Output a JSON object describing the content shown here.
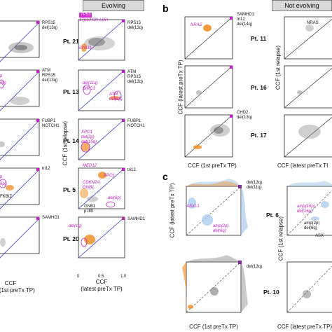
{
  "headers": {
    "evolving": "Evolving",
    "not_evolving": "Not evolving"
  },
  "panel_letters": {
    "b": "b",
    "c": "c"
  },
  "patients_a": [
    "Pt. 21",
    "Pt. 13",
    "Pt. 14",
    "Pt. 5",
    "Pt. 20"
  ],
  "patients_b": [
    "Pt. 11",
    "Pt. 16",
    "Pt. 17"
  ],
  "patients_c": [
    "Pt. 6",
    "Pt. 10"
  ],
  "left_labels": {
    "pt21": "RPS15\ndel(13q)",
    "pt13": "ATM\nRPS15\ndel(13q)",
    "pt14": "FUBP1\nNOTCH1",
    "pt5": "tri12",
    "pt20": "SAMHD1"
  },
  "left_magenta": {
    "pt13a": "p",
    "pt13b": "6p)",
    "pt5a": "p",
    "pt5b": "6p)",
    "pt5c": "FKBIZ"
  },
  "right_labels": {
    "pt21": "RPS15\ndel(13q)",
    "pt13": "ATM\nRPS15\ndel(13q)",
    "pt14": "FUBP1\nNOTCH1",
    "pt5": "tri12",
    "pt20": "SAMHD1"
  },
  "magenta_labels": {
    "tp53": "TP53",
    "cnloh": "17p13 CN-LOH",
    "synj1": "SYNJ1",
    "del11q": "del(11q)",
    "birc3": "BIRC3",
    "atm": "ATM\ndel(6p)",
    "xpo1": "XPO1\ndel(3p)\ndel(15q)",
    "med12": "MED12",
    "xpo1b": "XPO1",
    "cdkn2a": "CDKN2A\nGNB1",
    "del6p": "del(6p)",
    "del1q": "del(1q)"
  },
  "gnb1_label": "GNB1\np.I80",
  "b_labels": {
    "pt11_right": "SAMHD1\ntri12\ndel(14q)",
    "nras": "NRAS",
    "nras_right": "NRAS",
    "pt17_right": "CHD2\ndel(13q)"
  },
  "c_labels": {
    "del13q_11q": "del(13q)\ndel(11q)",
    "asxl1": "ASXL1",
    "amp2p": "amp(2p)\ndel(6q)",
    "amp16p": "amp(16p)\ndel(16p)",
    "amp2p_b": "amp(2p)\ndel(6q)",
    "asx_b": "ASX",
    "del13q": "del(13q)"
  },
  "axes": {
    "ccf_1st_relapse": "CCF (1st relapse)",
    "ccf_latest_pretx": "CCF (latest preTx TP)",
    "ccf_1st_pretx": "CCF (1st preTx TP)",
    "ccf": "CCF",
    "latest_pretx_tp": "(latest preTx TP)",
    "latest_pretx_short": "CCF (latest preTx TI"
  },
  "ticks": {
    "zero": "0",
    "half": "0.5",
    "one": "1.0"
  },
  "colors": {
    "magenta": "#c61fc6",
    "diagonal_blue": "#3f3fd0",
    "orange": "#f08a1c",
    "lightblue": "#9fc7ec",
    "header_grey": "#d9d9d9"
  }
}
